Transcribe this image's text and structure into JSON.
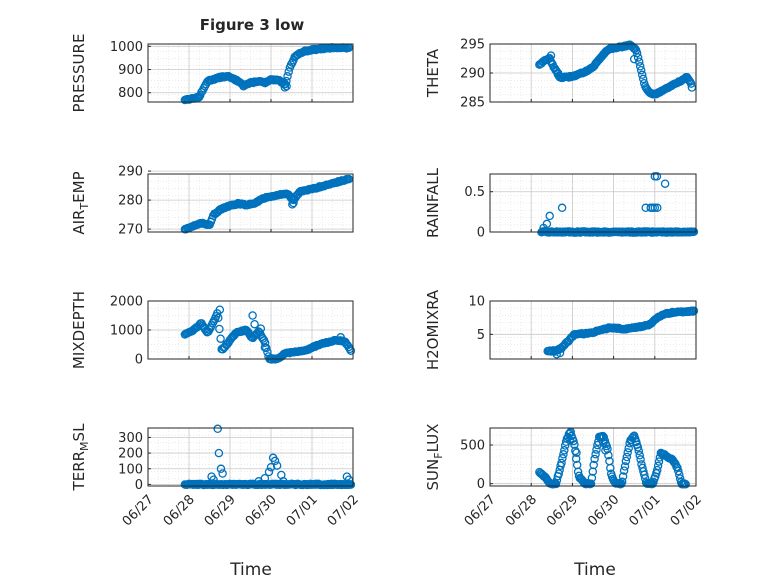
{
  "title": "Figure 3 low",
  "xlabel": "Time",
  "x_ticks": [
    "06/27",
    "06/28",
    "06/29",
    "06/30",
    "07/01",
    "07/02"
  ],
  "chart_data": [
    {
      "type": "scatter",
      "ylabel": "PRESSURE",
      "ylabel_sub": "",
      "ylim": [
        760,
        1010
      ],
      "yticks": [
        800,
        900,
        1000
      ],
      "xlim": [
        "06/27 00:00",
        "07/02 00:00"
      ],
      "anchors": [
        [
          0.9,
          770
        ],
        [
          1.1,
          775
        ],
        [
          1.25,
          782
        ],
        [
          1.35,
          815
        ],
        [
          1.45,
          850
        ],
        [
          1.6,
          858
        ],
        [
          1.8,
          868
        ],
        [
          1.95,
          870
        ],
        [
          2.1,
          858
        ],
        [
          2.25,
          845
        ],
        [
          2.35,
          832
        ],
        [
          2.5,
          842
        ],
        [
          2.7,
          850
        ],
        [
          2.85,
          842
        ],
        [
          3.0,
          855
        ],
        [
          3.2,
          853
        ],
        [
          3.35,
          835
        ],
        [
          3.45,
          905
        ],
        [
          3.6,
          960
        ],
        [
          3.8,
          978
        ],
        [
          4.0,
          985
        ],
        [
          4.3,
          990
        ],
        [
          4.6,
          995
        ],
        [
          4.9,
          992
        ]
      ],
      "outliers": [
        [
          3.34,
          823
        ],
        [
          3.38,
          828
        ],
        [
          2.33,
          828
        ]
      ],
      "n": 140
    },
    {
      "type": "scatter",
      "ylabel": "THETA",
      "ylabel_sub": "",
      "ylim": [
        285,
        295
      ],
      "yticks": [
        285,
        290,
        295
      ],
      "xlim": [
        "06/27 00:00",
        "07/02 00:00"
      ],
      "anchors": [
        [
          1.2,
          291.5
        ],
        [
          1.35,
          292.2
        ],
        [
          1.45,
          292.5
        ],
        [
          1.55,
          291
        ],
        [
          1.7,
          289.2
        ],
        [
          1.9,
          289.3
        ],
        [
          2.1,
          289.6
        ],
        [
          2.3,
          290.2
        ],
        [
          2.5,
          291
        ],
        [
          2.7,
          292.8
        ],
        [
          2.85,
          294
        ],
        [
          3.0,
          294.3
        ],
        [
          3.2,
          294.5
        ],
        [
          3.4,
          294.8
        ],
        [
          3.55,
          294
        ],
        [
          3.65,
          291
        ],
        [
          3.75,
          288
        ],
        [
          3.85,
          286.7
        ],
        [
          4.0,
          286.3
        ],
        [
          4.2,
          287
        ],
        [
          4.4,
          287.8
        ],
        [
          4.6,
          288.5
        ],
        [
          4.78,
          289.3
        ],
        [
          4.88,
          288.2
        ]
      ],
      "outliers": [
        [
          1.48,
          293
        ],
        [
          1.6,
          290.5
        ],
        [
          1.65,
          290
        ],
        [
          3.5,
          292.4
        ],
        [
          4.9,
          287.5
        ]
      ],
      "n": 150
    },
    {
      "type": "scatter",
      "ylabel": "AIR",
      "ylabel_sub": "T",
      "ylabel_tail": "EMP",
      "ylim": [
        269,
        289
      ],
      "yticks": [
        270,
        280,
        290
      ],
      "xlim": [
        "06/27 00:00",
        "07/02 00:00"
      ],
      "anchors": [
        [
          0.9,
          270
        ],
        [
          1.1,
          271
        ],
        [
          1.3,
          272
        ],
        [
          1.5,
          271.5
        ],
        [
          1.6,
          275
        ],
        [
          1.8,
          277
        ],
        [
          2.0,
          278
        ],
        [
          2.2,
          278.8
        ],
        [
          2.4,
          278.3
        ],
        [
          2.6,
          279
        ],
        [
          2.8,
          280.5
        ],
        [
          3.0,
          281.3
        ],
        [
          3.2,
          281.8
        ],
        [
          3.4,
          282.2
        ],
        [
          3.55,
          280
        ],
        [
          3.7,
          282.8
        ],
        [
          3.9,
          283.5
        ],
        [
          4.1,
          284.2
        ],
        [
          4.3,
          285
        ],
        [
          4.5,
          285.8
        ],
        [
          4.7,
          286.5
        ],
        [
          4.9,
          287.3
        ]
      ],
      "outliers": [
        [
          3.55,
          279
        ],
        [
          3.52,
          278.5
        ]
      ],
      "n": 140
    },
    {
      "type": "scatter",
      "ylabel": "RAINFALL",
      "ylabel_sub": "",
      "ylim": [
        0,
        0.72
      ],
      "yticks": [
        0,
        0.5
      ],
      "ytick_labels": [
        "0",
        "0.5"
      ],
      "xlim": [
        "06/27 00:00",
        "07/02 00:00"
      ],
      "anchors": [
        [
          1.25,
          0
        ],
        [
          1.5,
          0
        ],
        [
          2.0,
          0
        ],
        [
          2.5,
          0
        ],
        [
          3.0,
          0
        ],
        [
          3.5,
          0
        ],
        [
          3.7,
          0
        ],
        [
          4.0,
          0
        ],
        [
          4.5,
          0
        ],
        [
          4.95,
          0
        ]
      ],
      "outliers": [
        [
          1.3,
          0.05
        ],
        [
          1.38,
          0.1
        ],
        [
          1.45,
          0.2
        ],
        [
          1.75,
          0.3
        ],
        [
          3.78,
          0.3
        ],
        [
          3.9,
          0.3
        ],
        [
          3.95,
          0.3
        ],
        [
          4.0,
          0.3
        ],
        [
          4.06,
          0.3
        ],
        [
          4.0,
          0.69
        ],
        [
          4.05,
          0.69
        ],
        [
          4.25,
          0.6
        ]
      ],
      "n": 170
    },
    {
      "type": "scatter",
      "ylabel": "MIXDEPTH",
      "ylabel_sub": "",
      "ylim": [
        0,
        2000
      ],
      "yticks": [
        0,
        1000,
        2000
      ],
      "xlim": [
        "06/27 00:00",
        "07/02 00:00"
      ],
      "anchors": [
        [
          0.9,
          850
        ],
        [
          1.05,
          950
        ],
        [
          1.2,
          1100
        ],
        [
          1.3,
          1250
        ],
        [
          1.45,
          900
        ],
        [
          1.6,
          1300
        ],
        [
          1.7,
          1600
        ],
        [
          1.8,
          300
        ],
        [
          1.95,
          550
        ],
        [
          2.15,
          900
        ],
        [
          2.4,
          1000
        ],
        [
          2.55,
          700
        ],
        [
          2.7,
          950
        ],
        [
          2.85,
          600
        ],
        [
          2.95,
          0
        ],
        [
          3.15,
          0
        ],
        [
          3.35,
          200
        ],
        [
          3.6,
          250
        ],
        [
          3.85,
          300
        ],
        [
          4.1,
          450
        ],
        [
          4.3,
          550
        ],
        [
          4.6,
          650
        ],
        [
          4.8,
          600
        ],
        [
          4.95,
          300
        ]
      ],
      "outliers": [
        [
          1.75,
          1700
        ],
        [
          2.55,
          1500
        ],
        [
          2.6,
          1200
        ],
        [
          2.75,
          1050
        ],
        [
          2.85,
          400
        ],
        [
          4.7,
          750
        ]
      ],
      "n": 150
    },
    {
      "type": "scatter",
      "ylabel": "H2OMIXRA",
      "ylabel_sub": "",
      "ylim": [
        1.3,
        10
      ],
      "yticks": [
        5,
        10
      ],
      "xlim": [
        "06/27 00:00",
        "07/02 00:00"
      ],
      "anchors": [
        [
          1.4,
          2.5
        ],
        [
          1.6,
          2.5
        ],
        [
          1.75,
          3
        ],
        [
          1.9,
          4
        ],
        [
          2.05,
          5
        ],
        [
          2.3,
          5.1
        ],
        [
          2.5,
          5.3
        ],
        [
          2.7,
          5.6
        ],
        [
          2.9,
          6.0
        ],
        [
          3.1,
          5.9
        ],
        [
          3.3,
          5.8
        ],
        [
          3.5,
          6.0
        ],
        [
          3.7,
          6.2
        ],
        [
          3.9,
          6.5
        ],
        [
          4.05,
          7.5
        ],
        [
          4.2,
          8
        ],
        [
          4.45,
          8.3
        ],
        [
          4.7,
          8.4
        ],
        [
          4.95,
          8.5
        ]
      ],
      "outliers": [
        [
          1.62,
          2.0
        ],
        [
          1.7,
          2.2
        ]
      ],
      "n": 130
    },
    {
      "type": "scatter",
      "ylabel": "TERR",
      "ylabel_sub": "M",
      "ylabel_tail": "SL",
      "ylim": [
        -10,
        360
      ],
      "yticks": [
        0,
        100,
        200,
        300
      ],
      "xlim": [
        "06/27 00:00",
        "07/02 00:00"
      ],
      "anchors": [
        [
          0.9,
          0
        ],
        [
          1.5,
          0
        ],
        [
          1.8,
          0
        ],
        [
          2.2,
          0
        ],
        [
          2.6,
          0
        ],
        [
          3.0,
          0
        ],
        [
          3.4,
          0
        ],
        [
          3.8,
          0
        ],
        [
          4.2,
          0
        ],
        [
          4.6,
          0
        ],
        [
          4.95,
          0
        ]
      ],
      "outliers": [
        [
          1.55,
          50
        ],
        [
          1.6,
          30
        ],
        [
          1.7,
          355
        ],
        [
          1.73,
          200
        ],
        [
          1.78,
          100
        ],
        [
          1.82,
          70
        ],
        [
          2.85,
          40
        ],
        [
          2.95,
          80
        ],
        [
          3.0,
          110
        ],
        [
          3.05,
          170
        ],
        [
          3.1,
          150
        ],
        [
          3.15,
          120
        ],
        [
          3.25,
          60
        ],
        [
          3.3,
          20
        ],
        [
          4.85,
          50
        ],
        [
          4.9,
          30
        ],
        [
          2.7,
          20
        ]
      ],
      "n": 160
    },
    {
      "type": "scatter",
      "ylabel": "SUN",
      "ylabel_sub": "F",
      "ylabel_tail": "LUX",
      "ylim": [
        -30,
        720
      ],
      "yticks": [
        0,
        500
      ],
      "xlim": [
        "06/27 00:00",
        "07/02 00:00"
      ],
      "anchors": [
        [
          1.2,
          150
        ],
        [
          1.35,
          80
        ],
        [
          1.45,
          0
        ],
        [
          1.6,
          0
        ],
        [
          1.75,
          300
        ],
        [
          1.85,
          550
        ],
        [
          1.95,
          680
        ],
        [
          2.05,
          500
        ],
        [
          2.15,
          100
        ],
        [
          2.3,
          0
        ],
        [
          2.45,
          0
        ],
        [
          2.55,
          350
        ],
        [
          2.65,
          600
        ],
        [
          2.75,
          620
        ],
        [
          2.85,
          450
        ],
        [
          2.95,
          100
        ],
        [
          3.05,
          0
        ],
        [
          3.2,
          0
        ],
        [
          3.3,
          300
        ],
        [
          3.4,
          550
        ],
        [
          3.5,
          620
        ],
        [
          3.6,
          450
        ],
        [
          3.7,
          200
        ],
        [
          3.8,
          0
        ],
        [
          3.95,
          0
        ],
        [
          4.05,
          150
        ],
        [
          4.15,
          400
        ],
        [
          4.3,
          350
        ],
        [
          4.45,
          300
        ],
        [
          4.55,
          200
        ],
        [
          4.65,
          0
        ],
        [
          4.75,
          0
        ]
      ],
      "outliers": [
        [
          1.95,
          560
        ],
        [
          2.1,
          400
        ],
        [
          2.75,
          530
        ],
        [
          2.8,
          430
        ],
        [
          3.55,
          540
        ]
      ],
      "n": 160
    }
  ],
  "colors": {
    "marker": "#0072bd",
    "axis": "#262626",
    "grid": "#c8c8c8"
  }
}
